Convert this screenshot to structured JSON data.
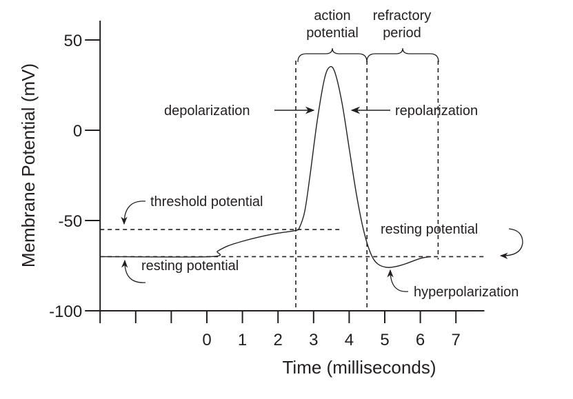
{
  "chart_data": {
    "type": "line",
    "title": "",
    "xlabel": "Time (milliseconds)",
    "ylabel": "Membrane Potential (mV)",
    "xlim": [
      -3,
      7.8
    ],
    "ylim": [
      -100,
      60
    ],
    "x_ticks": [
      -3,
      -2,
      -1,
      0,
      1,
      2,
      3,
      4,
      5,
      6,
      7
    ],
    "x_tick_labels": [
      "",
      "",
      "",
      "0",
      "1",
      "2",
      "3",
      "4",
      "5",
      "6",
      "7"
    ],
    "y_ticks": [
      50,
      0,
      -50,
      -100
    ],
    "y_tick_labels": [
      "50",
      "0",
      "-50",
      "-100"
    ],
    "grid": false,
    "series": [
      {
        "x": [
          -2.9,
          0.1,
          0.3,
          0.6,
          1.0,
          1.5,
          2.0,
          2.5,
          2.6,
          2.75,
          2.9,
          3.1,
          3.3,
          3.45,
          3.6,
          3.8,
          4.0,
          4.2,
          4.4,
          4.6,
          4.8,
          5.1,
          5.5,
          6.0,
          6.3
        ],
        "y": [
          -70,
          -70,
          -67,
          -64,
          -61.5,
          -59,
          -57,
          -55.5,
          -54,
          -45,
          -25,
          5,
          28,
          35,
          32,
          15,
          -10,
          -35,
          -55,
          -68,
          -74,
          -76,
          -74.5,
          -71,
          -70
        ]
      }
    ],
    "reference_lines": {
      "threshold_mV": -55,
      "resting_mV": -70,
      "action_potential_start_ms": 2.5,
      "action_potential_end_ms": 4.5,
      "refractory_end_ms": 6.5
    },
    "annotations": {
      "action_potential": [
        "action",
        "potential"
      ],
      "refractory_period": [
        "refractory",
        "period"
      ],
      "depolarization": "depolarization",
      "repolarization": "repolarization",
      "threshold_potential": "threshold potential",
      "resting_potential_left": "resting potential",
      "resting_potential_right": "resting potential",
      "hyperpolarization": "hyperpolarization"
    },
    "color": "#231f20"
  }
}
